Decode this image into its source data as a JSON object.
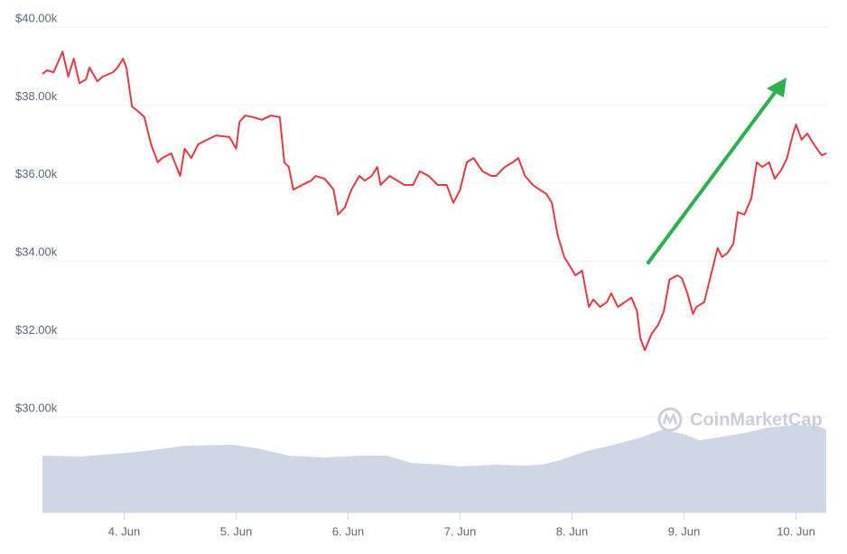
{
  "chart_data": [
    {
      "type": "line",
      "color": "#ea3943",
      "watermark": "CoinMarketCap",
      "xlim": [
        3.27,
        10.27
      ],
      "xticks": [
        {
          "value": 4,
          "label": "4. Jun"
        },
        {
          "value": 5,
          "label": "5. Jun"
        },
        {
          "value": 6,
          "label": "6. Jun"
        },
        {
          "value": 7,
          "label": "7. Jun"
        },
        {
          "value": 8,
          "label": "8. Jun"
        },
        {
          "value": 9,
          "label": "9. Jun"
        },
        {
          "value": 10,
          "label": "10. Jun"
        }
      ],
      "ylim": [
        30000,
        40000
      ],
      "yticks": [
        {
          "value": 30000,
          "label": "$30.00k"
        },
        {
          "value": 32000,
          "label": "$32.00k"
        },
        {
          "value": 34000,
          "label": "$34.00k"
        },
        {
          "value": 36000,
          "label": "$36.00k"
        },
        {
          "value": 38000,
          "label": "$38.00k"
        },
        {
          "value": 40000,
          "label": "$40.00k"
        }
      ],
      "grid": true,
      "x": [
        3.27,
        3.31,
        3.37,
        3.45,
        3.5,
        3.55,
        3.6,
        3.66,
        3.69,
        3.76,
        3.81,
        3.9,
        3.94,
        3.99,
        4.02,
        4.07,
        4.14,
        4.18,
        4.24,
        4.3,
        4.34,
        4.42,
        4.5,
        4.54,
        4.6,
        4.66,
        4.74,
        4.82,
        4.94,
        5.0,
        5.03,
        5.08,
        5.15,
        5.23,
        5.31,
        5.39,
        5.43,
        5.47,
        5.51,
        5.59,
        5.67,
        5.71,
        5.79,
        5.87,
        5.91,
        5.97,
        6.03,
        6.1,
        6.15,
        6.21,
        6.26,
        6.29,
        6.37,
        6.44,
        6.5,
        6.58,
        6.64,
        6.72,
        6.8,
        6.88,
        6.94,
        7.0,
        7.06,
        7.12,
        7.2,
        7.28,
        7.32,
        7.4,
        7.47,
        7.52,
        7.58,
        7.65,
        7.71,
        7.77,
        7.82,
        7.87,
        7.93,
        7.98,
        8.03,
        8.09,
        8.15,
        8.19,
        8.25,
        8.31,
        8.35,
        8.41,
        8.47,
        8.53,
        8.58,
        8.61,
        8.65,
        8.71,
        8.77,
        8.82,
        8.87,
        8.94,
        8.98,
        9.03,
        9.08,
        9.11,
        9.18,
        9.23,
        9.3,
        9.34,
        9.39,
        9.44,
        9.48,
        9.54,
        9.6,
        9.65,
        9.7,
        9.76,
        9.81,
        9.87,
        9.92,
        9.97,
        10.0,
        10.05,
        10.1,
        10.16,
        10.23,
        10.27
      ],
      "values": [
        38800,
        38890,
        38840,
        39370,
        38730,
        39190,
        38560,
        38660,
        38960,
        38610,
        38730,
        38840,
        38960,
        39190,
        38960,
        37960,
        37800,
        37690,
        36990,
        36530,
        36640,
        36760,
        36180,
        36880,
        36640,
        36990,
        37110,
        37220,
        37180,
        36880,
        37570,
        37730,
        37690,
        37620,
        37730,
        37690,
        36530,
        36410,
        35830,
        35950,
        36060,
        36180,
        36110,
        35830,
        35190,
        35370,
        35830,
        36180,
        36060,
        36180,
        36410,
        35950,
        36180,
        36060,
        35950,
        35950,
        36300,
        36180,
        35950,
        35950,
        35490,
        35830,
        36530,
        36640,
        36300,
        36180,
        36180,
        36410,
        36530,
        36640,
        36180,
        35950,
        35830,
        35720,
        35490,
        34680,
        34100,
        33870,
        33630,
        33750,
        32820,
        33010,
        32820,
        32940,
        33170,
        32820,
        32940,
        33060,
        32710,
        32010,
        31710,
        32130,
        32360,
        32710,
        33520,
        33630,
        33560,
        33170,
        32640,
        32820,
        32940,
        33520,
        34330,
        34100,
        34210,
        34440,
        35250,
        35190,
        35600,
        36530,
        36410,
        36530,
        36110,
        36340,
        36640,
        37220,
        37500,
        37110,
        37270,
        36990,
        36710,
        36760
      ]
    },
    {
      "type": "area",
      "color": "#cfd6e4",
      "xlim": [
        3.27,
        10.27
      ],
      "ylim": [
        0,
        100
      ],
      "x": [
        3.27,
        3.61,
        4.02,
        4.18,
        4.54,
        4.98,
        5.19,
        5.47,
        5.79,
        6.11,
        6.35,
        6.56,
        6.84,
        7.0,
        7.32,
        7.56,
        7.73,
        7.89,
        8.13,
        8.37,
        8.61,
        8.81,
        9.02,
        9.14,
        9.34,
        9.54,
        9.74,
        9.98,
        10.19,
        10.27
      ],
      "values": [
        59.4,
        58.5,
        62.3,
        64.2,
        69.8,
        70.8,
        67.0,
        59.4,
        57.5,
        59.4,
        59.4,
        51.9,
        50.0,
        48.1,
        50.0,
        49.1,
        50.0,
        54.7,
        64.2,
        70.8,
        78.3,
        86.8,
        81.1,
        75.5,
        79.2,
        83.0,
        88.7,
        91.5,
        90.6,
        86.8
      ]
    }
  ]
}
